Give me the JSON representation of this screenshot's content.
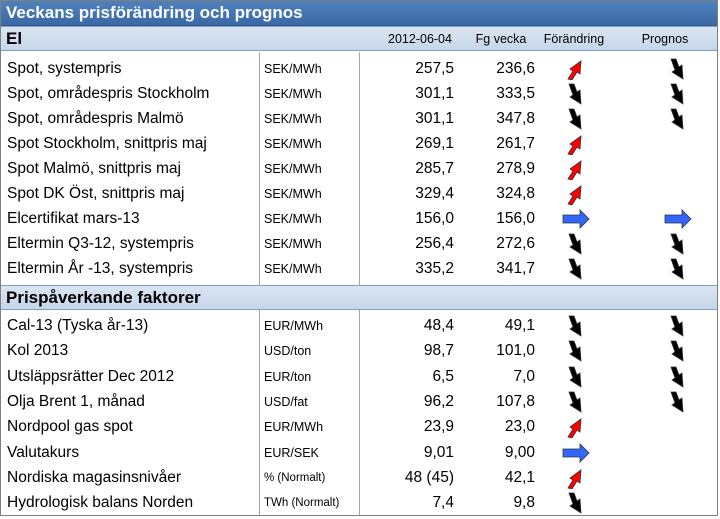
{
  "title": "Veckans prisförändring och prognos",
  "section_el": {
    "label": "El",
    "col_date": "2012-06-04",
    "col_prev": "Fg vecka",
    "col_change": "Förändring",
    "col_forecast": "Prognos"
  },
  "el_rows": [
    {
      "name": "Spot, systempris",
      "unit": "SEK/MWh",
      "current": "257,5",
      "previous": "236,6",
      "change": "up",
      "forecast": "down"
    },
    {
      "name": "Spot, områdespris Stockholm",
      "unit": "SEK/MWh",
      "current": "301,1",
      "previous": "333,5",
      "change": "down",
      "forecast": "down"
    },
    {
      "name": "Spot, områdespris Malmö",
      "unit": "SEK/MWh",
      "current": "301,1",
      "previous": "347,8",
      "change": "down",
      "forecast": "down"
    },
    {
      "name": "Spot Stockholm, snittpris maj",
      "unit": "SEK/MWh",
      "current": "269,1",
      "previous": "261,7",
      "change": "up",
      "forecast": ""
    },
    {
      "name": "Spot Malmö, snittpris maj",
      "unit": "SEK/MWh",
      "current": "285,7",
      "previous": "278,9",
      "change": "up",
      "forecast": ""
    },
    {
      "name": "Spot DK Öst, snittpris maj",
      "unit": "SEK/MWh",
      "current": "329,4",
      "previous": "324,8",
      "change": "up",
      "forecast": ""
    },
    {
      "name": "Elcertifikat mars-13",
      "unit": "SEK/MWh",
      "current": "156,0",
      "previous": "156,0",
      "change": "right",
      "forecast": "right"
    },
    {
      "name": "Eltermin Q3-12, systempris",
      "unit": "SEK/MWh",
      "current": "256,4",
      "previous": "272,6",
      "change": "down",
      "forecast": "down"
    },
    {
      "name": "Eltermin År -13, systempris",
      "unit": "SEK/MWh",
      "current": "335,2",
      "previous": "341,7",
      "change": "down",
      "forecast": "down"
    }
  ],
  "section_factors": {
    "label": "Prispåverkande faktorer"
  },
  "factor_rows": [
    {
      "name": "Cal-13 (Tyska år-13)",
      "unit": "EUR/MWh",
      "current": "48,4",
      "previous": "49,1",
      "change": "down",
      "forecast": "down"
    },
    {
      "name": "Kol 2013",
      "unit": "USD/ton",
      "current": "98,7",
      "previous": "101,0",
      "change": "down",
      "forecast": "down"
    },
    {
      "name": "Utsläppsrätter Dec 2012",
      "unit": "EUR/ton",
      "current": "6,5",
      "previous": "7,0",
      "change": "down",
      "forecast": "down"
    },
    {
      "name": "Olja Brent 1, månad",
      "unit": "USD/fat",
      "current": "96,2",
      "previous": "107,8",
      "change": "down",
      "forecast": "down"
    },
    {
      "name": "Nordpool gas spot",
      "unit": "EUR/MWh",
      "current": "23,9",
      "previous": "23,0",
      "change": "up",
      "forecast": ""
    },
    {
      "name": "Valutakurs",
      "unit": "EUR/SEK",
      "current": "9,01",
      "previous": "9,00",
      "change": "right",
      "forecast": ""
    },
    {
      "name": "Nordiska magasinsnivåer",
      "unit": "% (Normalt)",
      "current": "48 (45)",
      "previous": "42,1",
      "change": "up",
      "forecast": ""
    },
    {
      "name": "Hydrologisk balans Norden",
      "unit": "TWh (Normalt)",
      "current": "7,4",
      "previous": "9,8",
      "change": "down",
      "forecast": ""
    }
  ],
  "colors": {
    "header_blue": "#4f81bd",
    "section_fill": "#d3dff0",
    "arrow_up": "#ff0000",
    "arrow_down": "#000000",
    "arrow_right": "#3366ff"
  }
}
